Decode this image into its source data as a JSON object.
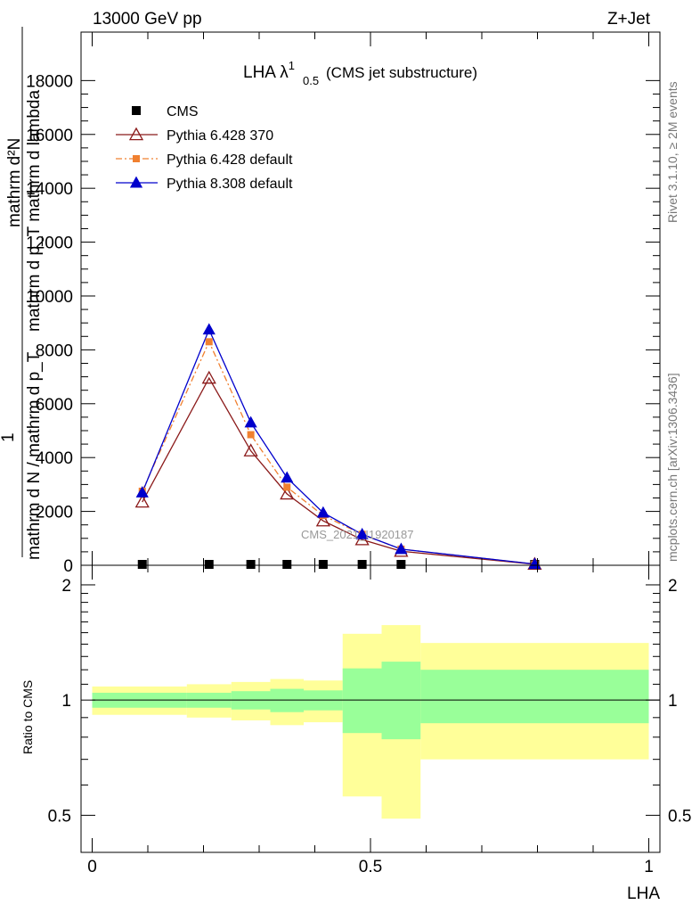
{
  "header": {
    "energy": "13000 GeV pp",
    "process": "Z+Jet"
  },
  "side_text": {
    "rivet": "Rivet 3.1.10, ≥ 2M events",
    "mcplots": "mcplots.cern.ch [arXiv:1306.3436]"
  },
  "chart_data": [
    {
      "type": "line",
      "title_main": "LHA λ",
      "title_sup": "1",
      "title_sub": "0.5",
      "title_suffix": "(CMS jet substructure)",
      "ylabel_top": "mathrm d²N",
      "ylabel_top_sub": "mathrm d p_T mathrm d lambda",
      "ylabel_bottom": "mathrm d N / mathrm d p_T",
      "ylabel_prefix": "1",
      "watermark": "CMS_2021_I1920187",
      "xlabel": "LHA",
      "xlim": [
        -0.02,
        1.02
      ],
      "ylim": [
        0,
        19800
      ],
      "yticks": [
        0,
        2000,
        4000,
        6000,
        8000,
        10000,
        12000,
        14000,
        16000,
        18000
      ],
      "ytick_labels": [
        "0",
        "2000",
        "4000",
        "6000",
        "8000",
        "10000",
        "12000",
        "14000",
        "16000",
        "18000"
      ],
      "x": [
        0.09,
        0.21,
        0.285,
        0.35,
        0.415,
        0.485,
        0.555,
        0.795
      ],
      "series": [
        {
          "name": "CMS",
          "color": "#000000",
          "marker": "square",
          "values": [
            0,
            0,
            0,
            0,
            0,
            0,
            0,
            0
          ]
        },
        {
          "name": "Pythia 6.428 370",
          "color": "#8b1a1a",
          "marker": "triangle-open",
          "dash": "",
          "values": [
            2350,
            6950,
            4250,
            2650,
            1650,
            950,
            520,
            40
          ]
        },
        {
          "name": "Pythia 6.428 default",
          "color": "#f08030",
          "marker": "square-small",
          "dash": "7,3,2,3",
          "values": [
            2750,
            8300,
            4850,
            2900,
            1850,
            1150,
            600,
            45
          ]
        },
        {
          "name": "Pythia 8.308 default",
          "color": "#0000cc",
          "marker": "triangle",
          "dash": "",
          "values": [
            2700,
            8750,
            5300,
            3250,
            1950,
            1150,
            600,
            45
          ]
        }
      ]
    },
    {
      "type": "area",
      "ylabel": "Ratio to CMS",
      "xlabel": "LHA",
      "xlim": [
        -0.02,
        1.02
      ],
      "ylim": [
        0.4,
        2.25
      ],
      "yticks": [
        0.5,
        1,
        2
      ],
      "ytick_labels": [
        "0.5",
        "1",
        "2"
      ],
      "xticks": [
        0,
        0.5,
        1
      ],
      "xtick_labels": [
        "0",
        "0.5",
        "1"
      ],
      "bins": [
        0.0,
        0.17,
        0.25,
        0.32,
        0.38,
        0.45,
        0.52,
        0.59,
        1.0
      ],
      "band_inner": [
        [
          0.955,
          1.045
        ],
        [
          0.955,
          1.045
        ],
        [
          0.945,
          1.055
        ],
        [
          0.93,
          1.07
        ],
        [
          0.94,
          1.06
        ],
        [
          0.82,
          1.21
        ],
        [
          0.79,
          1.26
        ],
        [
          0.87,
          1.2
        ]
      ],
      "band_outer": [
        [
          0.915,
          1.085
        ],
        [
          0.9,
          1.1
        ],
        [
          0.885,
          1.115
        ],
        [
          0.86,
          1.135
        ],
        [
          0.875,
          1.125
        ],
        [
          0.56,
          1.49
        ],
        [
          0.49,
          1.57
        ],
        [
          0.7,
          1.41
        ]
      ],
      "inner_color": "#99ff99",
      "outer_color": "#ffff99",
      "reference": 1
    }
  ]
}
